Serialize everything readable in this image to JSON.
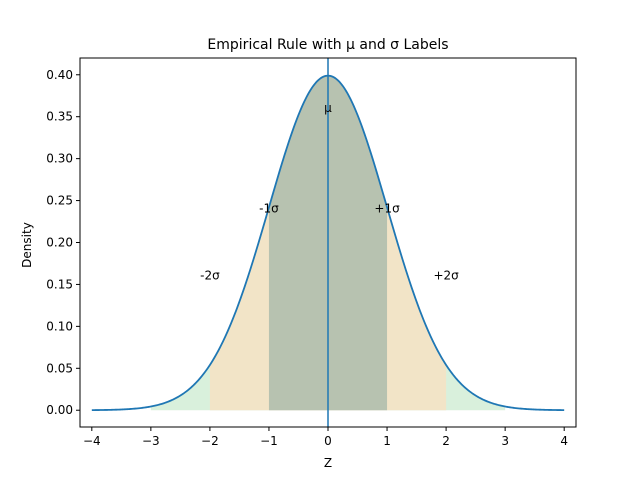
{
  "chart_data": {
    "type": "area",
    "title": "Empirical Rule with μ and σ Labels",
    "xlabel": "Z",
    "ylabel": "Density",
    "xlim": [
      -4.2,
      4.2
    ],
    "ylim": [
      -0.02,
      0.42
    ],
    "xticks": [
      -4,
      -3,
      -2,
      -1,
      0,
      1,
      2,
      3,
      4
    ],
    "xtick_labels": [
      "−4",
      "−3",
      "−2",
      "−1",
      "0",
      "1",
      "2",
      "3",
      "4"
    ],
    "yticks": [
      0.0,
      0.05,
      0.1,
      0.15,
      0.2,
      0.25,
      0.3,
      0.35,
      0.4
    ],
    "ytick_labels": [
      "0.00",
      "0.05",
      "0.10",
      "0.15",
      "0.20",
      "0.25",
      "0.30",
      "0.35",
      "0.40"
    ],
    "grid": false,
    "curve": {
      "function": "standard normal pdf",
      "x_range": [
        -4,
        4
      ],
      "color": "#1f77b4"
    },
    "bands": [
      {
        "from": -3,
        "to": 3,
        "color": "#d9f0dc"
      },
      {
        "from": -2,
        "to": 2,
        "color": "#f2e4c7"
      },
      {
        "from": -1,
        "to": 1,
        "color": "#b7c2b0"
      }
    ],
    "mean_line": {
      "x": 0,
      "color": "#1f77b4"
    },
    "annotations": [
      {
        "text": "μ",
        "x": 0,
        "y": 0.36
      },
      {
        "text": "-1σ",
        "x": -1,
        "y": 0.24
      },
      {
        "text": "+1σ",
        "x": 1,
        "y": 0.24
      },
      {
        "text": "-2σ",
        "x": -2,
        "y": 0.16
      },
      {
        "text": "+2σ",
        "x": 2,
        "y": 0.16
      }
    ]
  }
}
